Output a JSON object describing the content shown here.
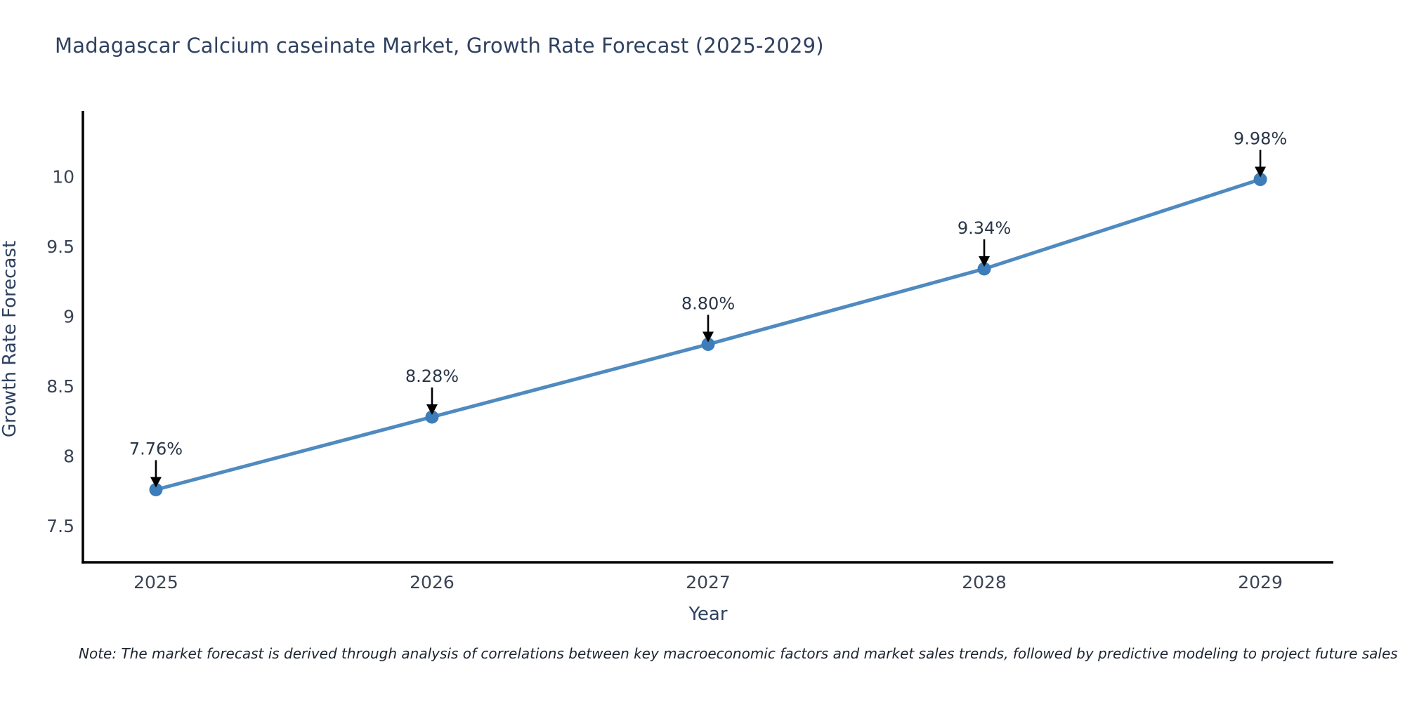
{
  "chart_data": {
    "type": "line",
    "title": "Madagascar Calcium caseinate Market, Growth Rate Forecast (2025-2029)",
    "xlabel": "Year",
    "ylabel": "Growth Rate Forecast",
    "categories": [
      "2025",
      "2026",
      "2027",
      "2028",
      "2029"
    ],
    "series": [
      {
        "name": "Growth Rate Forecast",
        "values": [
          7.76,
          8.28,
          8.8,
          9.34,
          9.98
        ]
      }
    ],
    "point_labels": [
      "7.76%",
      "8.28%",
      "8.80%",
      "9.34%",
      "9.98%"
    ],
    "yticks": [
      7.5,
      8,
      8.5,
      9,
      9.5,
      10
    ],
    "ytick_labels": [
      "7.5",
      "8",
      "8.5",
      "9",
      "9.5",
      "10"
    ],
    "ylim": [
      7.24,
      10.47
    ],
    "grid": false,
    "legend": "none",
    "marker_style": "circle",
    "annotation_arrow": "down-arrow",
    "colors": {
      "line": "#4f8ac0",
      "marker": "#3d7db9",
      "spine": "#000000",
      "annotation": "#000000",
      "title_text": "#2f4160",
      "tick_text": "#3b4455"
    }
  },
  "note": "Note: The market forecast is derived through analysis of correlations between key macroeconomic factors and market sales trends, followed by predictive modeling to project future sales"
}
